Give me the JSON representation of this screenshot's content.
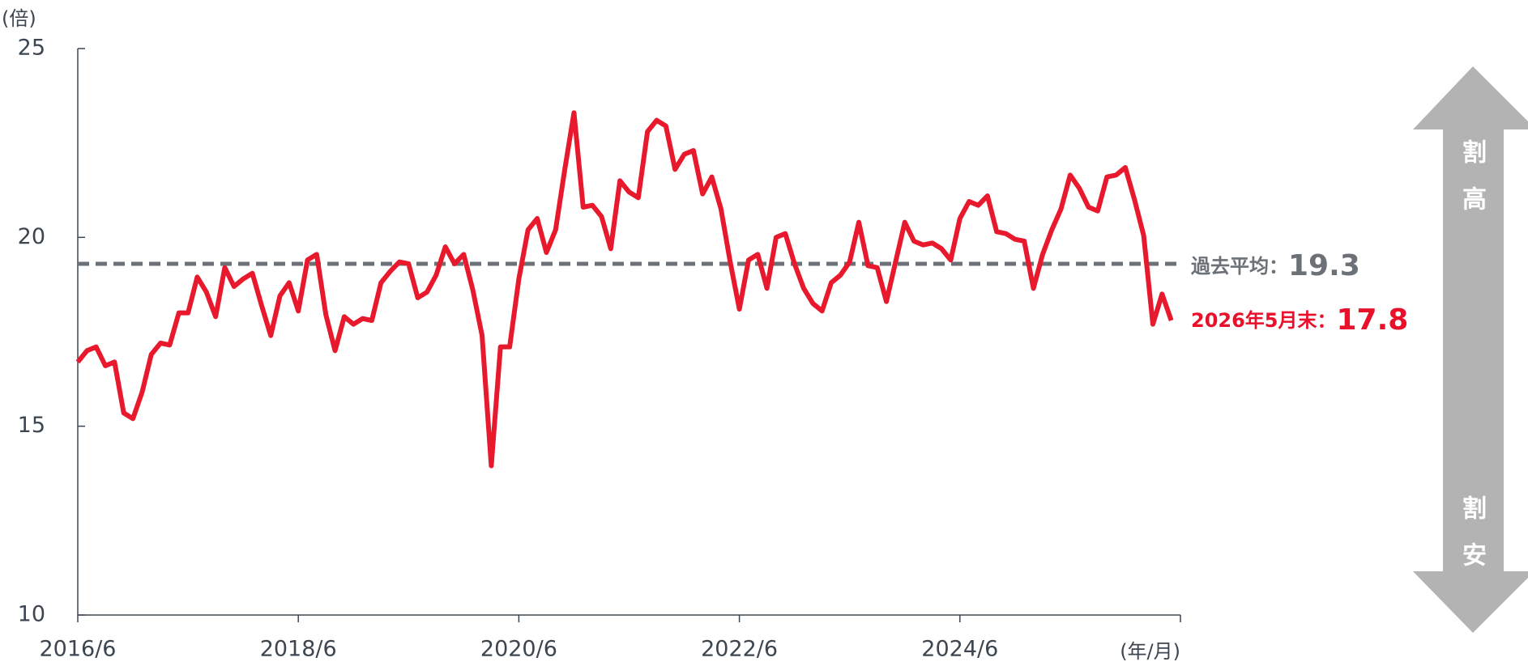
{
  "chart_data": {
    "type": "line",
    "y_unit": "(倍)",
    "x_unit": "(年/月)",
    "categories": [
      "2016/6",
      null,
      null,
      null,
      null,
      null,
      null,
      null,
      null,
      null,
      null,
      null,
      null,
      null,
      null,
      null,
      null,
      null,
      null,
      null,
      null,
      null,
      null,
      null,
      "2018/6",
      null,
      null,
      null,
      null,
      null,
      null,
      null,
      null,
      null,
      null,
      null,
      null,
      null,
      null,
      null,
      null,
      null,
      null,
      null,
      null,
      null,
      null,
      null,
      "2020/6",
      null,
      null,
      null,
      null,
      null,
      null,
      null,
      null,
      null,
      null,
      null,
      null,
      null,
      null,
      null,
      null,
      null,
      null,
      null,
      null,
      null,
      null,
      null,
      "2022/6",
      null,
      null,
      null,
      null,
      null,
      null,
      null,
      null,
      null,
      null,
      null,
      null,
      null,
      null,
      null,
      null,
      null,
      null,
      null,
      null,
      null,
      null,
      null,
      "2024/6",
      null,
      null,
      null,
      null,
      null,
      null,
      null,
      null,
      null,
      null,
      null,
      null,
      null,
      null,
      null,
      null,
      null,
      null,
      null,
      null,
      null,
      null,
      null
    ],
    "series": [
      {
        "color": "#e8192c",
        "values": [
          16.7,
          17.0,
          17.1,
          16.6,
          16.7,
          15.35,
          15.2,
          15.9,
          16.9,
          17.2,
          17.15,
          18.0,
          18.0,
          18.95,
          18.55,
          17.9,
          19.2,
          18.7,
          18.9,
          19.05,
          18.2,
          17.4,
          18.45,
          18.8,
          18.05,
          19.4,
          19.55,
          17.95,
          17.0,
          17.9,
          17.7,
          17.85,
          17.8,
          18.8,
          19.1,
          19.35,
          19.3,
          18.4,
          18.55,
          19.0,
          19.75,
          19.3,
          19.55,
          18.6,
          17.4,
          13.95,
          17.1,
          17.1,
          18.9,
          20.2,
          20.5,
          19.6,
          20.2,
          21.8,
          23.3,
          20.8,
          20.85,
          20.55,
          19.7,
          21.5,
          21.2,
          21.05,
          22.8,
          23.1,
          22.95,
          21.8,
          22.2,
          22.3,
          21.15,
          21.6,
          20.75,
          19.35,
          18.1,
          19.4,
          19.55,
          18.65,
          20.0,
          20.1,
          19.3,
          18.65,
          18.25,
          18.05,
          18.8,
          19.0,
          19.35,
          20.4,
          19.25,
          19.2,
          18.3,
          19.35,
          20.4,
          19.9,
          19.8,
          19.85,
          19.7,
          19.4,
          20.5,
          20.95,
          20.85,
          21.1,
          20.15,
          20.1,
          19.95,
          19.9,
          18.65,
          19.55,
          20.2,
          20.75,
          21.65,
          21.3,
          20.8,
          20.7,
          21.6,
          21.65,
          21.85,
          21.0,
          20.05,
          17.7,
          18.5,
          17.8
        ]
      }
    ],
    "ylim": [
      10,
      25
    ],
    "yticks": [
      10,
      15,
      20,
      25
    ],
    "average": {
      "label": "過去平均：",
      "value": 19.3,
      "color": "#6b7177"
    },
    "latest": {
      "label": "2026年5月末：",
      "value": 17.8,
      "color": "#e8102a"
    },
    "arrow": {
      "top": [
        "割",
        "高"
      ],
      "bottom": [
        "割",
        "安"
      ]
    }
  }
}
